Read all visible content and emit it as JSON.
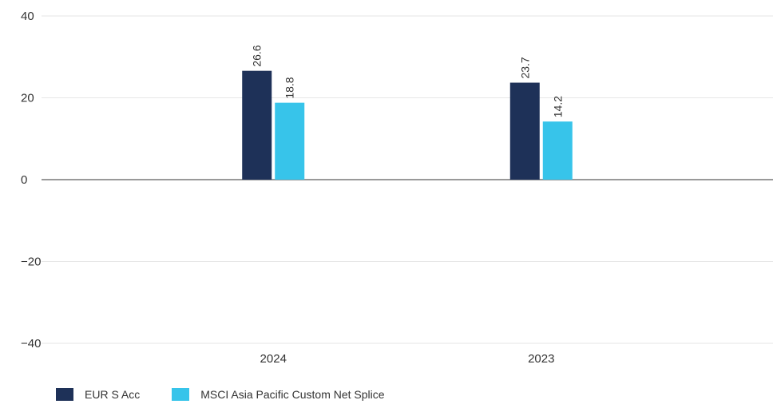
{
  "chart_data": {
    "type": "bar",
    "title": "",
    "xlabel": "",
    "ylabel": "",
    "categories": [
      "2024",
      "2023"
    ],
    "series": [
      {
        "name": "EUR S Acc",
        "values": [
          26.6,
          23.7
        ],
        "color": "#1e3158"
      },
      {
        "name": "MSCI Asia Pacific Custom Net Splice",
        "values": [
          18.8,
          14.2
        ],
        "color": "#37c4ea"
      }
    ],
    "ylim": [
      -40,
      40
    ],
    "yticks": [
      -40,
      -20,
      0,
      20,
      40
    ],
    "ytick_labels": [
      "−40",
      "−20",
      "0",
      "20",
      "40"
    ],
    "data_labels": [
      [
        "26.6",
        "23.7"
      ],
      [
        "18.8",
        "14.2"
      ]
    ],
    "grid": true,
    "legend_position": "bottom-left"
  }
}
